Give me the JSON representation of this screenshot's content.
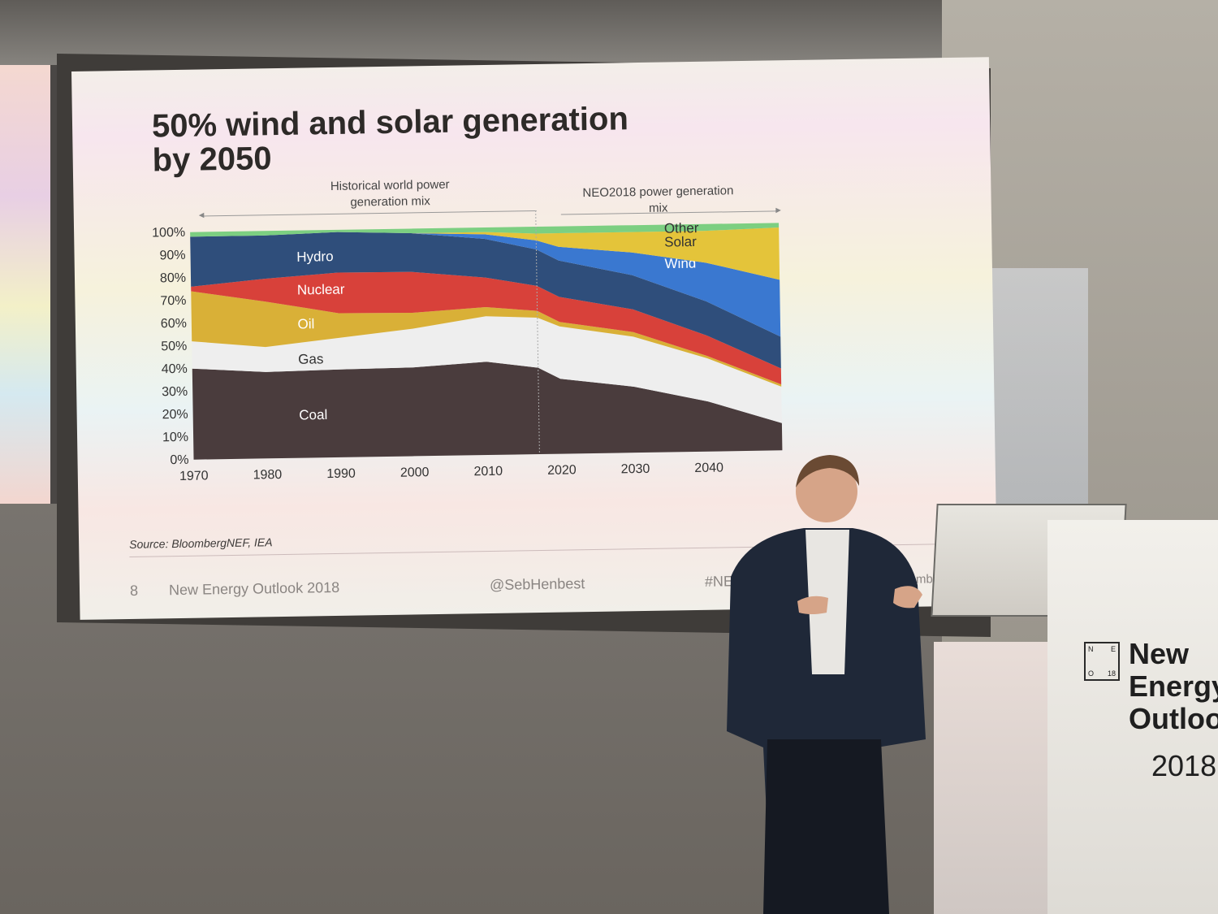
{
  "slide": {
    "title": "50% wind and solar generation\nby 2050",
    "historical_label": "Historical world power\ngeneration mix",
    "forecast_label": "NEO2018 power generation\nmix",
    "source": "Source: BloombergNEF, IEA",
    "page_number": "8",
    "footer_title": "New Energy Outlook 2018",
    "handle": "@SebHenbest",
    "hashtag": "#NE",
    "brand": "Bloomberg"
  },
  "chart_data": {
    "type": "area",
    "x": [
      1970,
      1980,
      1990,
      2000,
      2010,
      2017,
      2020,
      2030,
      2040,
      2050
    ],
    "y_ticks": [
      "0%",
      "10%",
      "20%",
      "30%",
      "40%",
      "50%",
      "60%",
      "70%",
      "80%",
      "90%",
      "100%"
    ],
    "x_ticks": [
      "1970",
      "1980",
      "1990",
      "2000",
      "2010",
      "2020",
      "2030",
      "2040"
    ],
    "ylim": [
      0,
      100
    ],
    "series": [
      {
        "name": "Coal",
        "color": "#4a3c3d",
        "values": [
          40,
          38,
          39,
          39,
          41,
          38,
          33,
          29,
          22,
          12
        ]
      },
      {
        "name": "Gas",
        "color": "#eeeeee",
        "values": [
          12,
          11,
          14,
          17,
          20,
          22,
          23,
          22,
          19,
          16
        ]
      },
      {
        "name": "Oil",
        "color": "#d9b037",
        "values": [
          22,
          20,
          11,
          7,
          4,
          3,
          2,
          2,
          1,
          1
        ]
      },
      {
        "name": "Nuclear",
        "color": "#d8413a",
        "values": [
          2,
          10,
          18,
          18,
          13,
          11,
          11,
          10,
          9,
          7
        ]
      },
      {
        "name": "Hydro",
        "color": "#2f4e7b",
        "values": [
          22,
          19,
          18,
          17,
          17,
          16,
          16,
          15,
          15,
          14
        ]
      },
      {
        "name": "Wind",
        "color": "#3a78d0",
        "values": [
          0,
          0,
          0,
          0,
          2,
          4,
          6,
          10,
          17,
          25
        ]
      },
      {
        "name": "Solar",
        "color": "#e4c43a",
        "values": [
          0,
          0,
          0,
          0,
          1,
          3,
          6,
          9,
          14,
          23
        ]
      },
      {
        "name": "Other",
        "color": "#7ccf81",
        "values": [
          2,
          2,
          1,
          2,
          2,
          3,
          3,
          3,
          3,
          2
        ]
      }
    ],
    "labels": {
      "Hydro": "Hydro",
      "Nuclear": "Nuclear",
      "Oil": "Oil",
      "Gas": "Gas",
      "Coal": "Coal",
      "Wind": "Wind",
      "Solar": "Solar",
      "Other": "Other"
    },
    "legend_placement": "inline-labels",
    "grid": false
  },
  "podium": {
    "brand_letters": [
      "N",
      "E",
      "O",
      "18"
    ],
    "brand_text": "New\nEnergy\nOutlook",
    "brand_year": "2018"
  }
}
